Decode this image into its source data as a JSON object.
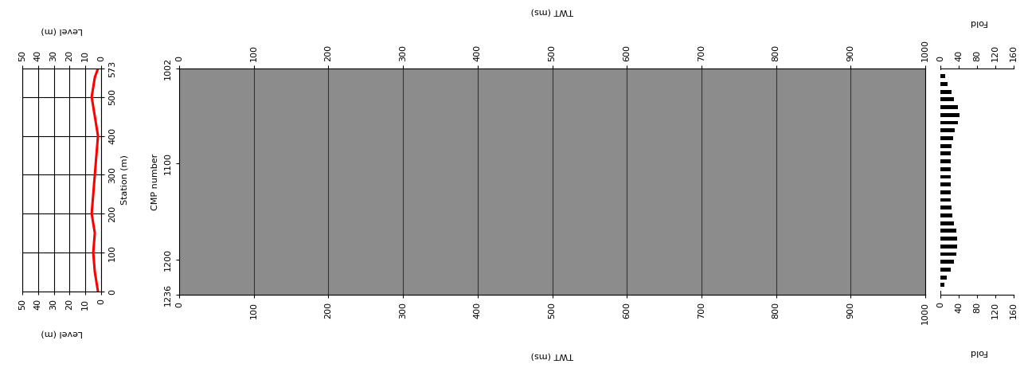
{
  "chart_data": [
    {
      "type": "line",
      "orientation": "horizontal",
      "x": [
        0,
        50,
        100,
        150,
        200,
        250,
        300,
        350,
        400,
        450,
        500,
        550,
        573
      ],
      "values": [
        2,
        4,
        5,
        4,
        6,
        5,
        4,
        3,
        2,
        4,
        6,
        4,
        2
      ],
      "color": "#ff0000",
      "xlabel": "Level (m)",
      "ylabel": "Station (m)",
      "xlim": [
        50,
        0
      ],
      "xticks": [
        50,
        40,
        30,
        20,
        10,
        0
      ],
      "ylim": [
        0,
        573
      ],
      "yticks": [
        0,
        100,
        200,
        300,
        400,
        500,
        573
      ],
      "grid": true
    },
    {
      "type": "image",
      "xlabel": "TWT (ms)",
      "ylabel": "CMP number",
      "xlim": [
        0,
        1000
      ],
      "xticks": [
        0,
        100,
        200,
        300,
        400,
        500,
        600,
        700,
        800,
        900,
        1000
      ],
      "ylim": [
        1236,
        1002
      ],
      "yticks": [
        1002,
        1100,
        1200,
        1236
      ],
      "color": "#8c8c8c",
      "grid": true
    },
    {
      "type": "bar",
      "orientation": "horizontal",
      "x": [
        1002,
        1010,
        1018,
        1026,
        1034,
        1042,
        1050,
        1058,
        1066,
        1074,
        1082,
        1090,
        1098,
        1106,
        1114,
        1122,
        1130,
        1138,
        1146,
        1154,
        1162,
        1170,
        1178,
        1186,
        1194,
        1202,
        1210,
        1218,
        1226,
        1234
      ],
      "values": [
        2,
        10,
        16,
        24,
        30,
        38,
        42,
        38,
        32,
        27,
        24,
        23,
        22,
        22,
        22,
        22,
        22,
        23,
        24,
        26,
        30,
        34,
        36,
        36,
        34,
        30,
        22,
        14,
        8,
        2
      ],
      "color": "#000000",
      "xlabel": "Fold",
      "xlim": [
        0,
        160
      ],
      "xticks": [
        0,
        40,
        80,
        120,
        160
      ],
      "ylim": [
        1236,
        1002
      ],
      "tick_labels": "x"
    }
  ]
}
